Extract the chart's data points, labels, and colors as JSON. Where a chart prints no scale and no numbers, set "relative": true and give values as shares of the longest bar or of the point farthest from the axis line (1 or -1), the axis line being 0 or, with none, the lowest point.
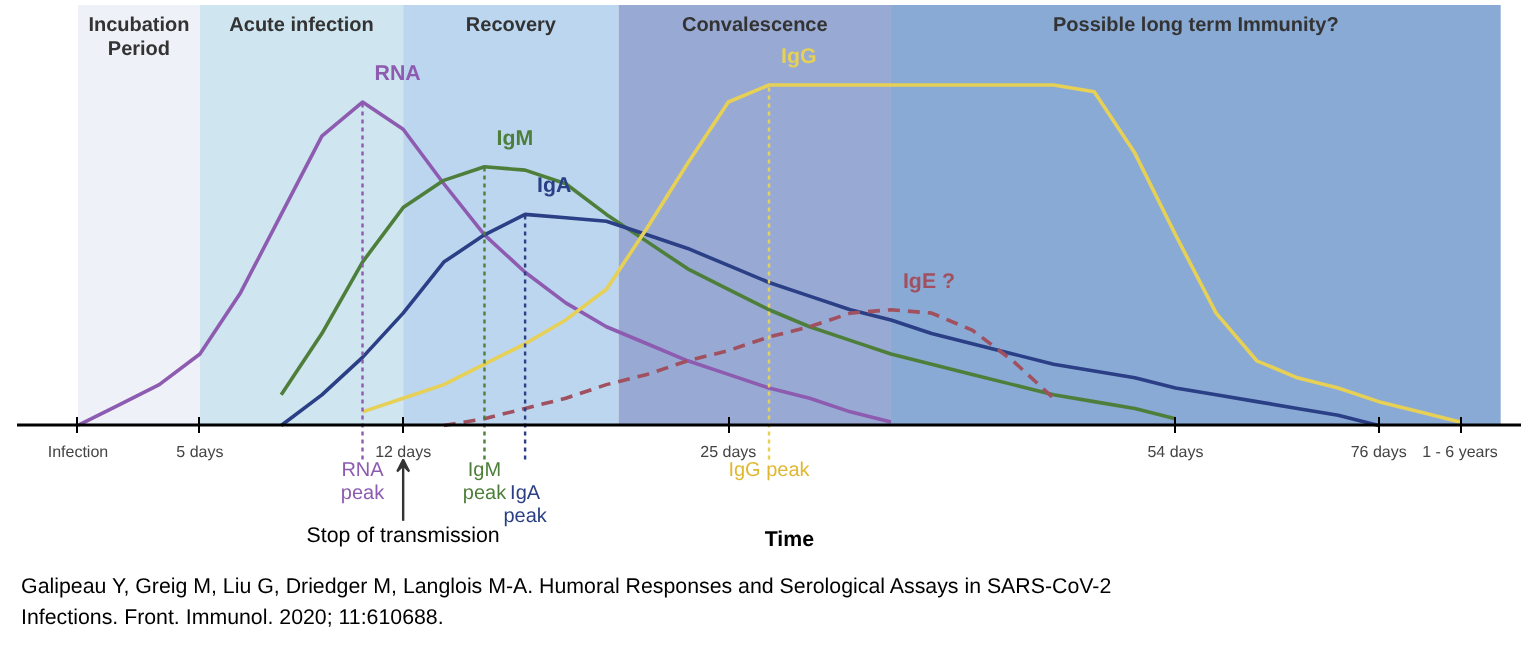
{
  "chart_data": {
    "type": "line",
    "relative": true,
    "xlabel": "Time",
    "categories": [
      "Infection",
      null,
      null,
      "5 days",
      null,
      null,
      null,
      null,
      "12 days",
      null,
      null,
      null,
      null,
      null,
      null,
      null,
      "25 days",
      null,
      null,
      null,
      null,
      null,
      null,
      null,
      null,
      null,
      null,
      "54 days",
      null,
      null,
      null,
      null,
      "76 days",
      null,
      "1 - 6 years",
      null
    ],
    "series": [
      {
        "name": "RNA",
        "color": "#8d5bb0",
        "values": [
          0,
          0.06,
          0.12,
          0.21,
          0.39,
          0.62,
          0.85,
          0.95,
          0.87,
          0.71,
          0.56,
          0.45,
          0.36,
          0.29,
          0.24,
          0.19,
          0.15,
          0.11,
          0.08,
          0.04,
          0.01,
          null,
          null,
          null,
          null,
          null,
          null,
          null,
          null,
          null,
          null,
          null,
          null,
          null,
          null,
          null
        ]
      },
      {
        "name": "IgM",
        "color": "#4e7f3a",
        "values": [
          null,
          null,
          null,
          null,
          null,
          0.09,
          0.27,
          0.48,
          0.64,
          0.72,
          0.76,
          0.75,
          0.71,
          0.62,
          0.54,
          0.46,
          0.4,
          0.34,
          0.29,
          0.25,
          0.21,
          0.18,
          0.15,
          0.12,
          0.09,
          0.07,
          0.05,
          0.02,
          null,
          null,
          null,
          null,
          null,
          null,
          null,
          null
        ]
      },
      {
        "name": "IgA",
        "color": "#2a3f85",
        "values": [
          null,
          null,
          null,
          null,
          null,
          0,
          0.09,
          0.2,
          0.33,
          0.48,
          0.56,
          0.62,
          0.61,
          0.6,
          0.56,
          0.52,
          0.47,
          0.42,
          0.38,
          0.34,
          0.31,
          0.27,
          0.24,
          0.21,
          0.18,
          0.16,
          0.14,
          0.11,
          0.09,
          0.07,
          0.05,
          0.03,
          0,
          null,
          null,
          null
        ]
      },
      {
        "name": "IgG",
        "color": "#e6d055",
        "values": [
          null,
          null,
          null,
          null,
          null,
          null,
          null,
          0.04,
          0.08,
          0.12,
          0.18,
          0.24,
          0.31,
          0.4,
          0.58,
          0.77,
          0.95,
          1,
          1,
          1,
          1,
          1,
          1,
          1,
          1,
          0.98,
          0.8,
          0.56,
          0.33,
          0.19,
          0.14,
          0.11,
          0.07,
          0.04,
          0.01,
          null
        ]
      },
      {
        "name": "IgE ?",
        "color": "#a0505e",
        "line_style": "dashed",
        "values": [
          null,
          null,
          null,
          null,
          null,
          null,
          null,
          null,
          null,
          0,
          0.02,
          0.05,
          0.08,
          0.12,
          0.15,
          0.19,
          0.22,
          0.26,
          0.29,
          0.33,
          0.34,
          0.33,
          0.28,
          0.19,
          0.08,
          null,
          null,
          null,
          null,
          null,
          null,
          null,
          null,
          null,
          null,
          null
        ]
      }
    ],
    "annotations": [
      "Incubation Period",
      "Acute infection",
      "Recovery",
      "Convalescence",
      "Possible long term Immunity?",
      "RNA peak",
      "IgM peak",
      "IgA peak",
      "IgG peak",
      "Stop of transmission",
      "Galipeau Y, Greig M, Liu G, Driedger M, Langlois M-A. Humoral Responses and Serological Assays in SARS-CoV-2 Infections. Front. Immunol. 2020; 11:610688."
    ]
  }
}
